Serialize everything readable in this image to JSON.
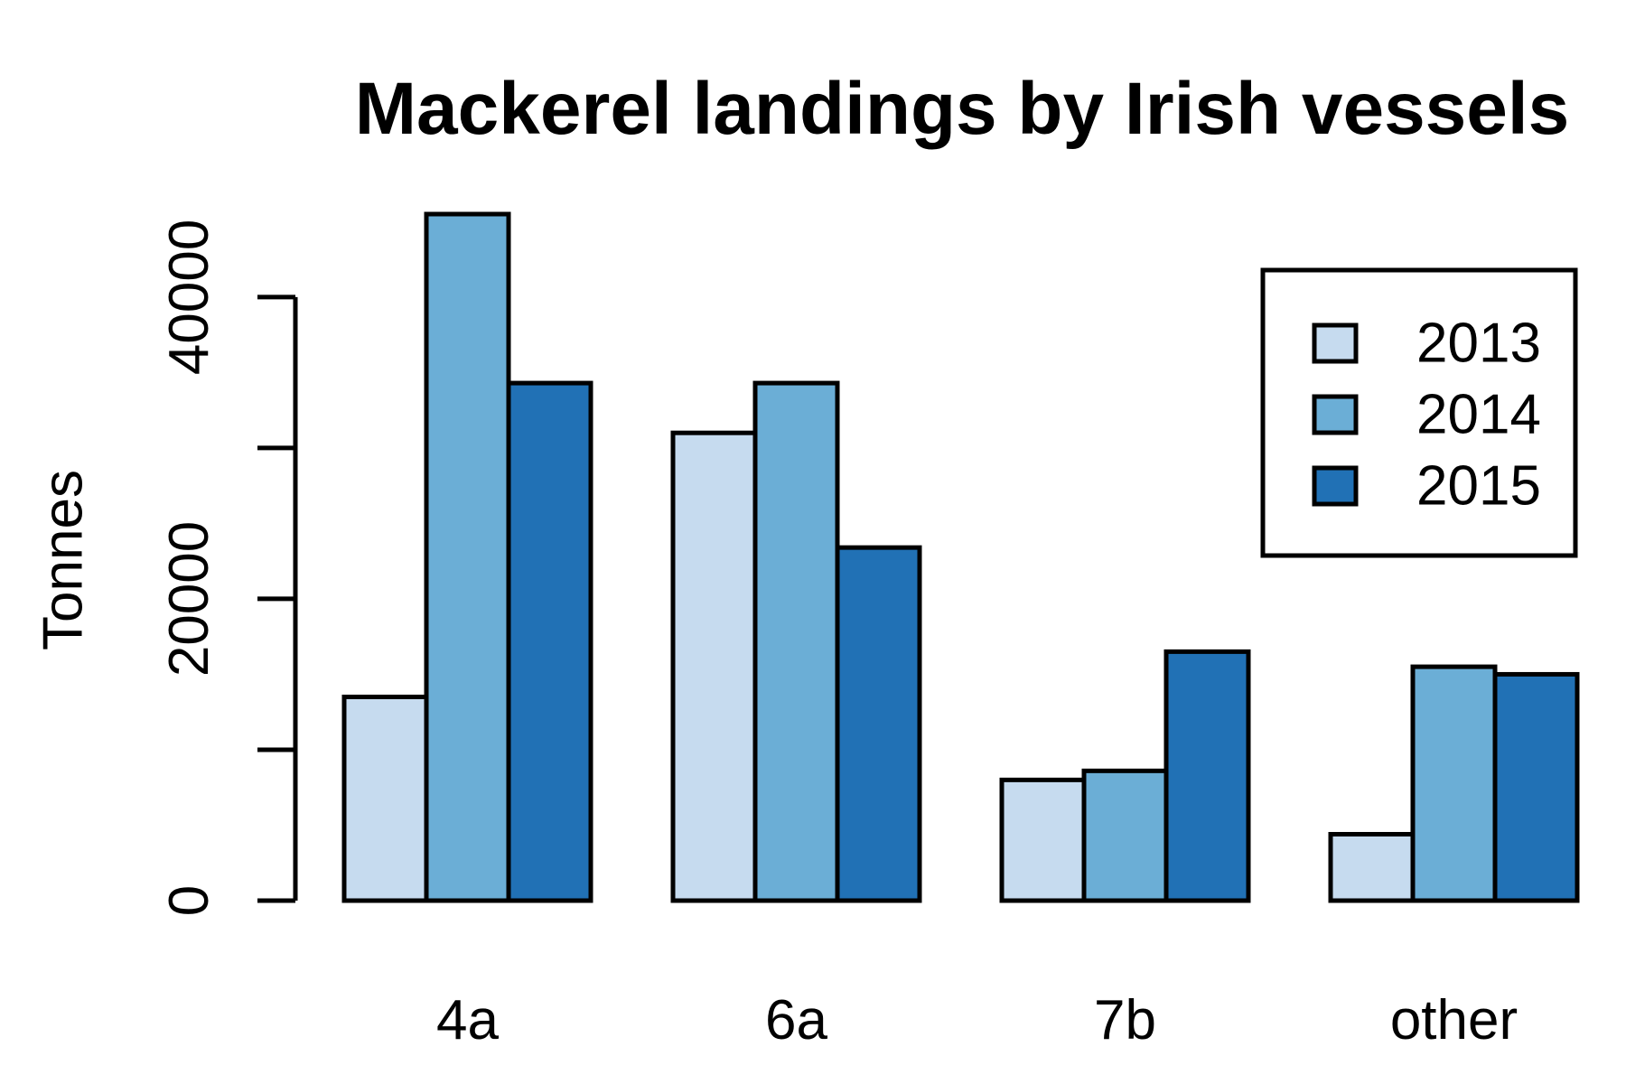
{
  "chart_data": {
    "type": "bar",
    "title": "Mackerel landings by Irish vessels",
    "xlabel": "",
    "ylabel": "Tonnes",
    "categories": [
      "4a",
      "6a",
      "7b",
      "other"
    ],
    "series": [
      {
        "name": "2013",
        "color": "#c6dbef",
        "values": [
          13500,
          31000,
          8000,
          4400
        ]
      },
      {
        "name": "2014",
        "color": "#6baed6",
        "values": [
          45500,
          34300,
          8600,
          15500
        ]
      },
      {
        "name": "2015",
        "color": "#2171b5",
        "values": [
          34300,
          23400,
          16500,
          15000
        ]
      }
    ],
    "ylim": [
      0,
      45500
    ],
    "yticks": [
      0,
      10000,
      20000,
      30000,
      40000
    ],
    "ytick_labels": [
      "0",
      "",
      "20000",
      "",
      "40000"
    ],
    "grid": false,
    "legend_position": "top-right"
  }
}
